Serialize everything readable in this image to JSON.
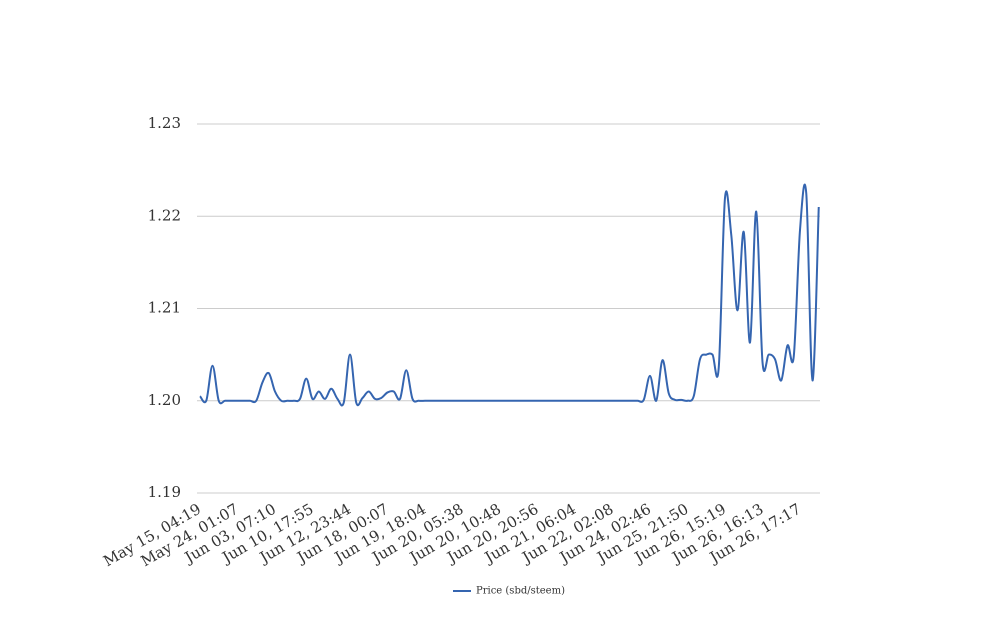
{
  "chart_data": {
    "type": "line",
    "categories": [
      "May 15, 04:19",
      null,
      null,
      null,
      null,
      null,
      "May 24, 01:07",
      null,
      null,
      null,
      null,
      null,
      "Jun 03, 07:10",
      null,
      null,
      null,
      null,
      null,
      "Jun 10, 17:55",
      null,
      null,
      null,
      null,
      null,
      "Jun 12, 23:44",
      null,
      null,
      null,
      null,
      null,
      "Jun 18, 00:07",
      null,
      null,
      null,
      null,
      null,
      "Jun 19, 18:04",
      null,
      null,
      null,
      null,
      null,
      "Jun 20, 05:38",
      null,
      null,
      null,
      null,
      null,
      "Jun 20, 10:48",
      null,
      null,
      null,
      null,
      null,
      "Jun 20, 20:56",
      null,
      null,
      null,
      null,
      null,
      "Jun 21, 06:04",
      null,
      null,
      null,
      null,
      null,
      "Jun 22, 02:08",
      null,
      null,
      null,
      null,
      null,
      "Jun 24, 02:46",
      null,
      null,
      null,
      null,
      null,
      "Jun 25, 21:50",
      null,
      null,
      null,
      null,
      null,
      "Jun 26, 15:19",
      null,
      null,
      null,
      null,
      null,
      "Jun 26, 16:13",
      null,
      null,
      null,
      null,
      null,
      "Jun 26, 17:17",
      null,
      null,
      null
    ],
    "series": [
      {
        "name": "Price (sbd/steem)",
        "color": "#3565b0",
        "values": [
          1.2005,
          1.2,
          1.2038,
          1.2,
          1.2,
          1.2,
          1.2,
          1.2,
          1.2,
          1.2,
          1.202,
          1.203,
          1.201,
          1.2,
          1.2,
          1.2,
          1.2002,
          1.2024,
          1.2002,
          1.201,
          1.2002,
          1.2013,
          1.2002,
          1.1998,
          1.205,
          1.1998,
          1.2003,
          1.201,
          1.2002,
          1.2003,
          1.2009,
          1.201,
          1.2002,
          1.2033,
          1.2002,
          1.2,
          1.2,
          1.2,
          1.2,
          1.2,
          1.2,
          1.2,
          1.2,
          1.2,
          1.2,
          1.2,
          1.2,
          1.2,
          1.2,
          1.2,
          1.2,
          1.2,
          1.2,
          1.2,
          1.2,
          1.2,
          1.2,
          1.2,
          1.2,
          1.2,
          1.2,
          1.2,
          1.2,
          1.2,
          1.2,
          1.2,
          1.2,
          1.2,
          1.2,
          1.2,
          1.2,
          1.2001,
          1.2027,
          1.2,
          1.2044,
          1.2008,
          1.2001,
          1.2001,
          1.2,
          1.2005,
          1.2045,
          1.205,
          1.205,
          1.2036,
          1.222,
          1.218,
          1.2098,
          1.2183,
          1.2063,
          1.2205,
          1.2042,
          1.205,
          1.2045,
          1.2022,
          1.206,
          1.2048,
          1.2185,
          1.2225,
          1.2022,
          1.221
        ]
      }
    ],
    "ylim": [
      1.19,
      1.23
    ],
    "yticks": [
      1.19,
      {
        "value": 1.2,
        "label": "1.20"
      },
      1.21,
      1.22,
      1.23
    ],
    "grid": true,
    "smooth": true,
    "legend": "bottom"
  }
}
